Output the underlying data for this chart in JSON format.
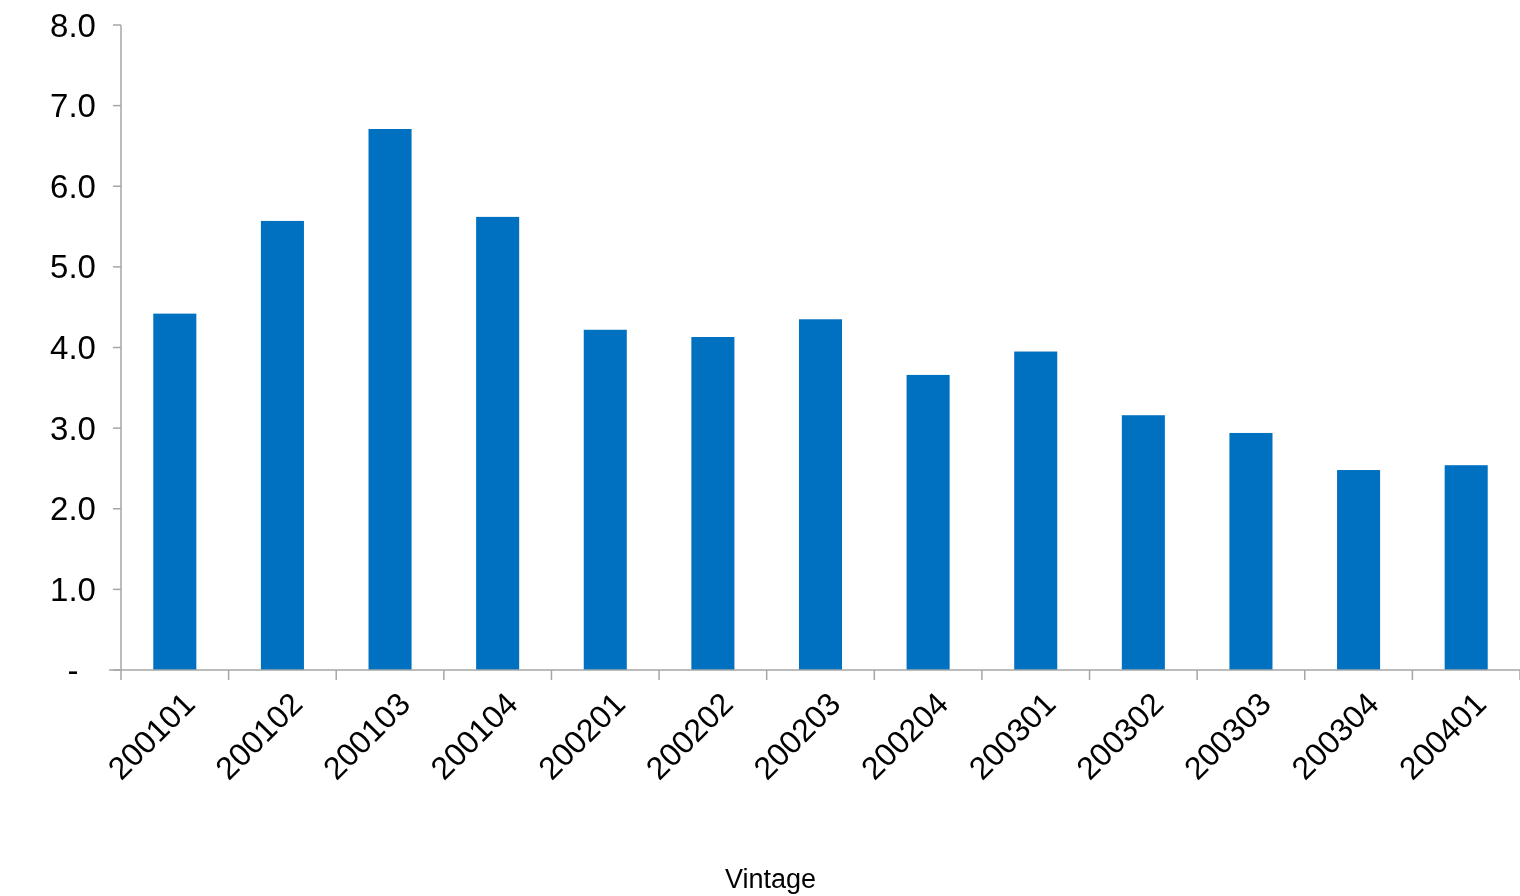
{
  "chart_data": {
    "type": "bar",
    "xlabel": "Vintage",
    "categories": [
      "200101",
      "200102",
      "200103",
      "200104",
      "200201",
      "200202",
      "200203",
      "200204",
      "200301",
      "200302",
      "200303",
      "200304",
      "200401"
    ],
    "values": [
      4.42,
      5.57,
      6.71,
      5.62,
      4.22,
      4.13,
      4.35,
      3.66,
      3.95,
      3.16,
      2.94,
      2.48,
      2.54
    ],
    "color": "#0070c0",
    "ylim": [
      0,
      8
    ],
    "yticks": [
      {
        "value": 0,
        "label": "-"
      },
      {
        "value": 1,
        "label": "1.0"
      },
      {
        "value": 2,
        "label": "2.0"
      },
      {
        "value": 3,
        "label": "3.0"
      },
      {
        "value": 4,
        "label": "4.0"
      },
      {
        "value": 5,
        "label": "5.0"
      },
      {
        "value": 6,
        "label": "6.0"
      },
      {
        "value": 7,
        "label": "7.0"
      },
      {
        "value": 8,
        "label": "8.0"
      }
    ],
    "grid": false
  }
}
